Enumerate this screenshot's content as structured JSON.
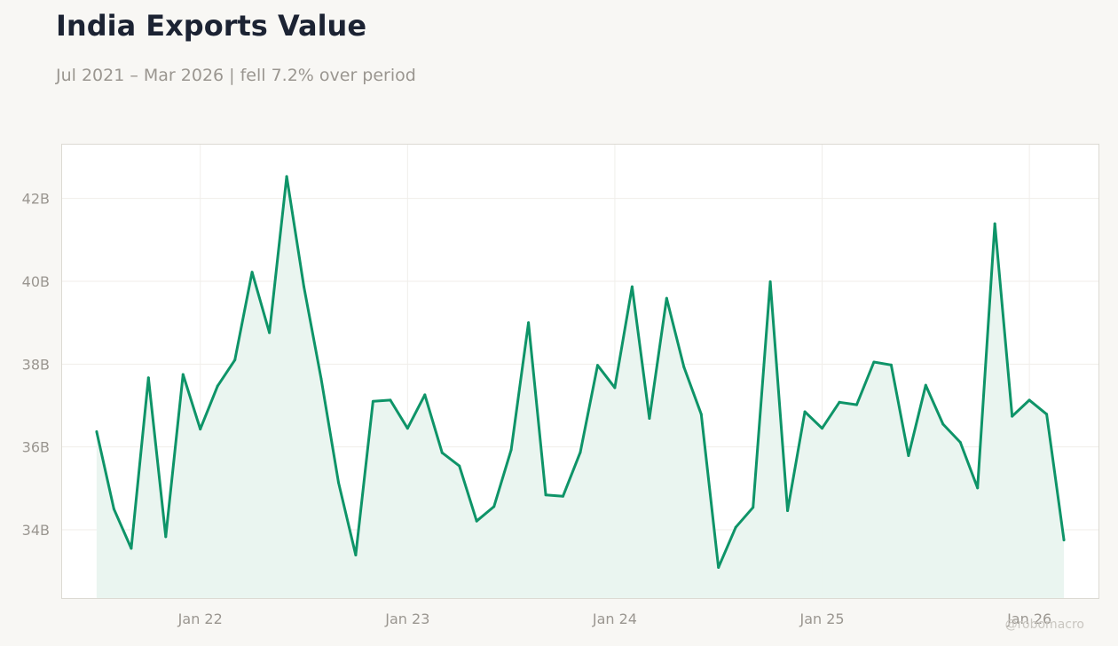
{
  "header": {
    "title": "India Exports Value",
    "subtitle": "Jul 2021 – Mar 2026 | fell 7.2% over period"
  },
  "credit": "@robomacro",
  "colors": {
    "line": "#0e9468",
    "fill": "#e9f4ef",
    "grid": "#f0eeea",
    "frame": "#dcdad3",
    "background": "#f8f7f4"
  },
  "chart_data": {
    "type": "line",
    "title": "India Exports Value",
    "xlabel": "",
    "ylabel": "",
    "y_tick_values": [
      34,
      36,
      38,
      40,
      42
    ],
    "y_tick_labels": [
      "34B",
      "36B",
      "38B",
      "40B",
      "42B"
    ],
    "x_tick_labels": [
      "Jan 22",
      "Jan 23",
      "Jan 24",
      "Jan 25",
      "Jan 26"
    ],
    "x_tick_dates": [
      "2022-01",
      "2023-01",
      "2024-01",
      "2025-01",
      "2026-01"
    ],
    "ylim": [
      32.35,
      43.3
    ],
    "xlim": [
      "2021-05",
      "2026-05"
    ],
    "grid": true,
    "fill_under_line": true,
    "series": [
      {
        "x": [
          "2021-07",
          "2021-08",
          "2021-09",
          "2021-10",
          "2021-11",
          "2021-12",
          "2022-01",
          "2022-02",
          "2022-03",
          "2022-04",
          "2022-05",
          "2022-06",
          "2022-07",
          "2022-08",
          "2022-09",
          "2022-10",
          "2022-11",
          "2022-12",
          "2023-01",
          "2023-02",
          "2023-03",
          "2023-04",
          "2023-05",
          "2023-06",
          "2023-07",
          "2023-08",
          "2023-09",
          "2023-10",
          "2023-11",
          "2023-12",
          "2024-01",
          "2024-02",
          "2024-03",
          "2024-04",
          "2024-05",
          "2024-06",
          "2024-07",
          "2024-08",
          "2024-09",
          "2024-10",
          "2024-11",
          "2024-12",
          "2025-01",
          "2025-02",
          "2025-03",
          "2025-04",
          "2025-05",
          "2025-06",
          "2025-07",
          "2025-08",
          "2025-09",
          "2025-10",
          "2025-11",
          "2025-12",
          "2026-01",
          "2026-02",
          "2026-03"
        ],
        "values": [
          36.37,
          34.5,
          33.55,
          37.67,
          33.83,
          37.75,
          36.43,
          37.47,
          38.1,
          40.22,
          38.76,
          42.53,
          39.87,
          37.64,
          35.14,
          33.39,
          37.1,
          37.13,
          36.45,
          37.26,
          35.86,
          35.54,
          34.21,
          34.56,
          35.93,
          39.0,
          34.84,
          34.81,
          35.87,
          37.97,
          37.43,
          39.87,
          36.69,
          39.59,
          37.93,
          36.79,
          33.09,
          34.06,
          34.54,
          39.99,
          34.46,
          36.85,
          36.45,
          37.08,
          37.02,
          38.05,
          37.98,
          35.79,
          37.49,
          36.55,
          36.11,
          35.01,
          41.39,
          36.74,
          37.13,
          36.79,
          33.75
        ]
      }
    ]
  }
}
